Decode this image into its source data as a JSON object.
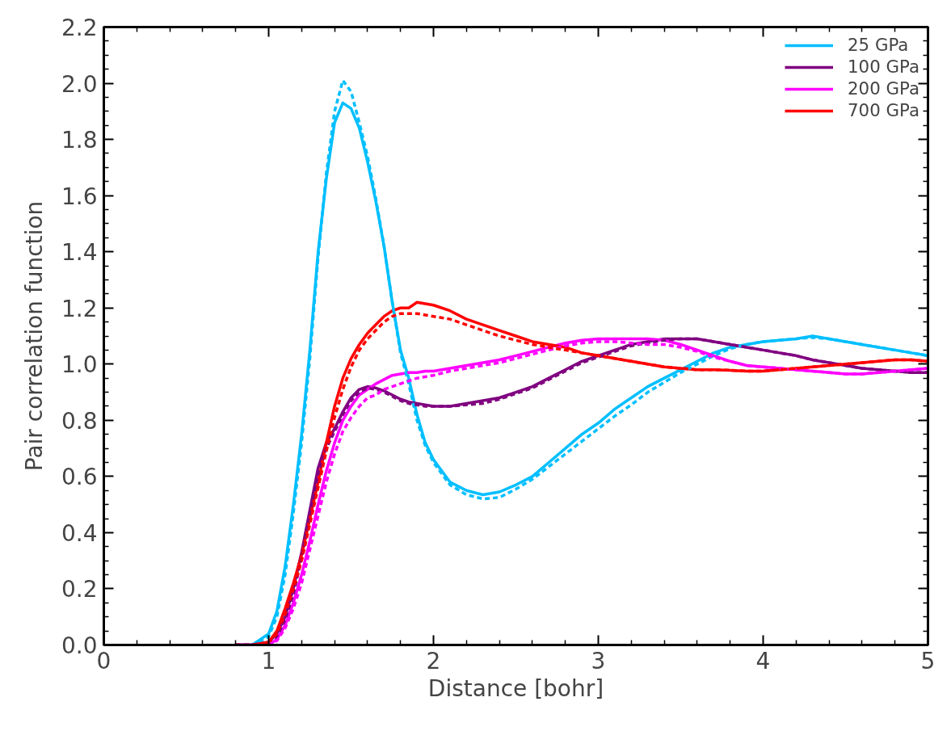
{
  "chart_data": {
    "type": "line",
    "xlabel": "Distance [bohr]",
    "ylabel": "Pair correlation function",
    "xlim": [
      0,
      5
    ],
    "ylim": [
      0,
      2.2
    ],
    "xticks": [
      0,
      1,
      2,
      3,
      4,
      5
    ],
    "yticks": [
      {
        "value": 0,
        "label": "0.0"
      },
      {
        "value": 0.2,
        "label": "0.2"
      },
      {
        "value": 0.4,
        "label": "0.4"
      },
      {
        "value": 0.6,
        "label": "0.6"
      },
      {
        "value": 0.8,
        "label": "0.8"
      },
      {
        "value": 1.0,
        "label": "1.0"
      },
      {
        "value": 1.2,
        "label": "1.2"
      },
      {
        "value": 1.4,
        "label": "1.4"
      },
      {
        "value": 1.6,
        "label": "1.6"
      },
      {
        "value": 1.8,
        "label": "1.8"
      },
      {
        "value": 2.0,
        "label": "2.0"
      },
      {
        "value": 2.2,
        "label": "2.2"
      }
    ],
    "grid": false,
    "legend": "top right",
    "marker": "none",
    "x": [
      0.8,
      0.9,
      1.0,
      1.05,
      1.1,
      1.15,
      1.2,
      1.25,
      1.3,
      1.35,
      1.4,
      1.45,
      1.5,
      1.55,
      1.6,
      1.65,
      1.7,
      1.75,
      1.8,
      1.85,
      1.9,
      1.95,
      2.0,
      2.1,
      2.2,
      2.3,
      2.4,
      2.5,
      2.6,
      2.7,
      2.8,
      2.9,
      3.0,
      3.1,
      3.2,
      3.3,
      3.4,
      3.5,
      3.6,
      3.7,
      3.8,
      3.9,
      4.0,
      4.1,
      4.2,
      4.3,
      4.4,
      4.5,
      4.6,
      4.7,
      4.8,
      4.9,
      5.0
    ],
    "series": [
      {
        "name": "25 GPa",
        "color": "#00bfff",
        "line_style": "solid",
        "values": [
          0,
          0,
          0.04,
          0.12,
          0.28,
          0.5,
          0.75,
          1.05,
          1.4,
          1.66,
          1.86,
          1.93,
          1.91,
          1.84,
          1.72,
          1.58,
          1.42,
          1.22,
          1.05,
          0.95,
          0.82,
          0.72,
          0.66,
          0.58,
          0.55,
          0.535,
          0.545,
          0.57,
          0.6,
          0.65,
          0.7,
          0.75,
          0.79,
          0.84,
          0.88,
          0.92,
          0.95,
          0.98,
          1.01,
          1.04,
          1.06,
          1.07,
          1.08,
          1.085,
          1.09,
          1.1,
          1.09,
          1.08,
          1.07,
          1.06,
          1.05,
          1.04,
          1.03
        ]
      },
      {
        "name": "100 GPa",
        "color": "#800080",
        "line_style": "solid",
        "values": [
          0,
          0,
          0.01,
          0.04,
          0.1,
          0.2,
          0.33,
          0.48,
          0.63,
          0.72,
          0.77,
          0.83,
          0.88,
          0.91,
          0.92,
          0.915,
          0.905,
          0.89,
          0.875,
          0.865,
          0.86,
          0.855,
          0.85,
          0.85,
          0.86,
          0.87,
          0.88,
          0.9,
          0.92,
          0.95,
          0.98,
          1.01,
          1.03,
          1.05,
          1.07,
          1.08,
          1.09,
          1.09,
          1.09,
          1.08,
          1.07,
          1.06,
          1.05,
          1.04,
          1.03,
          1.015,
          1.005,
          0.995,
          0.985,
          0.98,
          0.975,
          0.97,
          0.97
        ]
      },
      {
        "name": "200 GPa",
        "color": "#ff00ff",
        "line_style": "solid",
        "values": [
          0,
          0,
          0,
          0.02,
          0.07,
          0.15,
          0.25,
          0.37,
          0.5,
          0.62,
          0.72,
          0.8,
          0.85,
          0.89,
          0.91,
          0.93,
          0.945,
          0.96,
          0.965,
          0.97,
          0.97,
          0.975,
          0.975,
          0.985,
          0.995,
          1.005,
          1.015,
          1.03,
          1.045,
          1.06,
          1.075,
          1.085,
          1.09,
          1.09,
          1.09,
          1.09,
          1.085,
          1.07,
          1.05,
          1.03,
          1.01,
          0.995,
          0.99,
          0.985,
          0.98,
          0.975,
          0.97,
          0.965,
          0.965,
          0.97,
          0.975,
          0.98,
          0.985
        ]
      },
      {
        "name": "700 GPa",
        "color": "#ff0000",
        "line_style": "solid",
        "values": [
          0,
          0,
          0.01,
          0.05,
          0.13,
          0.22,
          0.32,
          0.45,
          0.58,
          0.72,
          0.85,
          0.95,
          1.02,
          1.07,
          1.11,
          1.14,
          1.17,
          1.19,
          1.2,
          1.2,
          1.22,
          1.215,
          1.21,
          1.19,
          1.16,
          1.14,
          1.12,
          1.1,
          1.08,
          1.07,
          1.06,
          1.04,
          1.03,
          1.02,
          1.01,
          1.0,
          0.99,
          0.985,
          0.98,
          0.98,
          0.978,
          0.975,
          0.975,
          0.98,
          0.985,
          0.99,
          0.995,
          1.0,
          1.005,
          1.01,
          1.015,
          1.015,
          1.01
        ]
      },
      {
        "color": "#00bfff",
        "line_style": "dashed",
        "values": [
          0,
          0,
          0.03,
          0.1,
          0.25,
          0.47,
          0.72,
          1.02,
          1.38,
          1.68,
          1.9,
          2.01,
          1.97,
          1.86,
          1.74,
          1.59,
          1.42,
          1.22,
          1.04,
          0.93,
          0.8,
          0.71,
          0.65,
          0.57,
          0.535,
          0.52,
          0.525,
          0.555,
          0.59,
          0.635,
          0.68,
          0.725,
          0.77,
          0.815,
          0.855,
          0.9,
          0.935,
          0.97,
          1.0,
          1.03,
          1.055,
          1.07,
          1.08,
          1.085,
          1.09,
          1.095,
          1.09,
          1.08,
          1.07,
          1.06,
          1.05,
          1.04,
          1.03
        ]
      },
      {
        "color": "#800080",
        "line_style": "dashed",
        "values": [
          0,
          0,
          0.01,
          0.03,
          0.09,
          0.18,
          0.31,
          0.46,
          0.61,
          0.7,
          0.76,
          0.82,
          0.87,
          0.9,
          0.915,
          0.91,
          0.9,
          0.885,
          0.87,
          0.86,
          0.855,
          0.85,
          0.85,
          0.85,
          0.855,
          0.86,
          0.875,
          0.895,
          0.915,
          0.945,
          0.975,
          1.005,
          1.025,
          1.045,
          1.065,
          1.075,
          1.085,
          1.09,
          1.09,
          1.08,
          1.07,
          1.06,
          1.05,
          1.04,
          1.03,
          1.015,
          1.005,
          0.995,
          0.985,
          0.98,
          0.975,
          0.97,
          0.97
        ]
      },
      {
        "color": "#ff00ff",
        "line_style": "dashed",
        "values": [
          0,
          0,
          0,
          0.015,
          0.06,
          0.13,
          0.22,
          0.34,
          0.46,
          0.58,
          0.68,
          0.76,
          0.81,
          0.85,
          0.88,
          0.89,
          0.91,
          0.92,
          0.93,
          0.94,
          0.95,
          0.955,
          0.96,
          0.975,
          0.985,
          0.995,
          1.005,
          1.02,
          1.035,
          1.05,
          1.065,
          1.075,
          1.08,
          1.08,
          1.075,
          1.07,
          1.07,
          1.06,
          1.045,
          1.025,
          1.01,
          0.995,
          0.99,
          0.985,
          0.98,
          0.975,
          0.97,
          0.965,
          0.965,
          0.97,
          0.975,
          0.98,
          0.985
        ]
      },
      {
        "color": "#ff0000",
        "line_style": "dashed",
        "values": [
          0,
          0,
          0.01,
          0.04,
          0.11,
          0.2,
          0.3,
          0.43,
          0.56,
          0.69,
          0.81,
          0.91,
          0.99,
          1.05,
          1.09,
          1.12,
          1.15,
          1.17,
          1.18,
          1.18,
          1.18,
          1.175,
          1.17,
          1.16,
          1.14,
          1.12,
          1.1,
          1.085,
          1.07,
          1.06,
          1.05,
          1.04,
          1.03,
          1.02,
          1.01,
          1.0,
          0.99,
          0.985,
          0.98,
          0.98,
          0.978,
          0.975,
          0.975,
          0.98,
          0.985,
          0.99,
          0.995,
          1.0,
          1.005,
          1.01,
          1.015,
          1.015,
          1.01
        ]
      }
    ]
  }
}
